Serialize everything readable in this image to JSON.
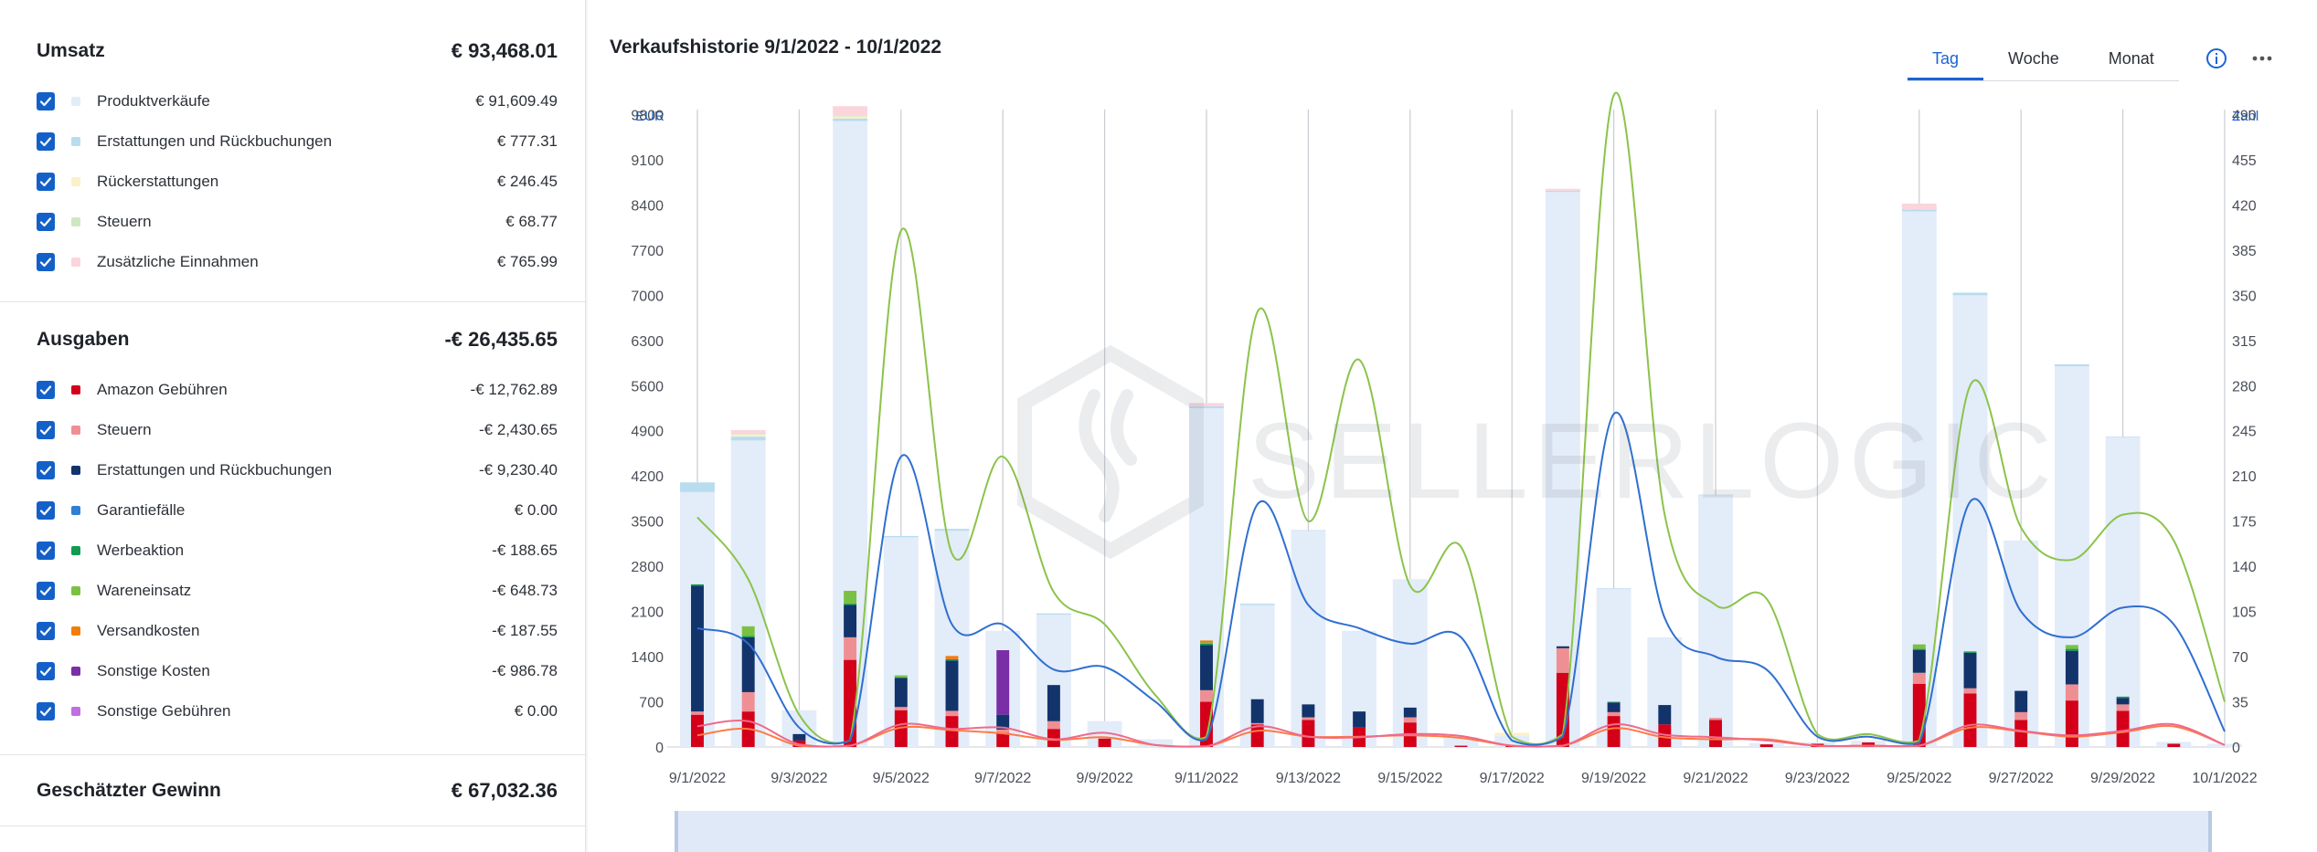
{
  "revenue": {
    "title": "Umsatz",
    "total": "€ 93,468.01",
    "items": [
      {
        "label": "Produktverkäufe",
        "value": "€ 91,609.49",
        "color": "#e3ecf9"
      },
      {
        "label": "Erstattungen und Rückbuchungen",
        "value": "€ 777.31",
        "color": "#b9dcef"
      },
      {
        "label": "Rückerstattungen",
        "value": "€ 246.45",
        "color": "#fbf0c8"
      },
      {
        "label": "Steuern",
        "value": "€ 68.77",
        "color": "#cfe8c2"
      },
      {
        "label": "Zusätzliche Einnahmen",
        "value": "€ 765.99",
        "color": "#fbd5dc"
      }
    ]
  },
  "expenses": {
    "title": "Ausgaben",
    "total": "-€ 26,435.65",
    "items": [
      {
        "label": "Amazon Gebühren",
        "value": "-€ 12,762.89",
        "color": "#d40019"
      },
      {
        "label": "Steuern",
        "value": "-€ 2,430.65",
        "color": "#ef8f94"
      },
      {
        "label": "Erstattungen und Rückbuchungen",
        "value": "-€ 9,230.40",
        "color": "#13336b"
      },
      {
        "label": "Garantiefälle",
        "value": "€ 0.00",
        "color": "#2f80d4"
      },
      {
        "label": "Werbeaktion",
        "value": "-€ 188.65",
        "color": "#109b4f"
      },
      {
        "label": "Wareneinsatz",
        "value": "-€ 648.73",
        "color": "#7ac143"
      },
      {
        "label": "Versandkosten",
        "value": "-€ 187.55",
        "color": "#f07d0b"
      },
      {
        "label": "Sonstige Kosten",
        "value": "-€ 986.78",
        "color": "#7a2fa6"
      },
      {
        "label": "Sonstige Gebühren",
        "value": "€ 0.00",
        "color": "#c06ee0"
      }
    ]
  },
  "profit": {
    "title": "Geschätzter Gewinn",
    "total": "€ 67,032.36"
  },
  "chart_header": {
    "title": "Verkaufshistorie 9/1/2022 - 10/1/2022",
    "tabs": [
      "Tag",
      "Woche",
      "Monat"
    ],
    "active_tab": "Tag",
    "watermark": "SELLERLOGIC"
  },
  "chart_data": {
    "type": "bar",
    "left_axis_unit": "EUR",
    "right_axis_unit": "Zahl",
    "ylim": [
      0,
      10500
    ],
    "y2lim": [
      0,
      525
    ],
    "yticks": [
      0,
      700,
      1400,
      2100,
      2800,
      3500,
      4200,
      4900,
      5600,
      6300,
      7000,
      7700,
      8400,
      9100,
      9800
    ],
    "y2ticks": [
      0,
      35,
      70,
      105,
      140,
      175,
      210,
      245,
      280,
      315,
      350,
      385,
      420,
      455,
      490
    ],
    "grid": "vertical",
    "dates": [
      "9/1/2022",
      "9/2/2022",
      "9/3/2022",
      "9/4/2022",
      "9/5/2022",
      "9/6/2022",
      "9/7/2022",
      "9/8/2022",
      "9/9/2022",
      "9/10/2022",
      "9/11/2022",
      "9/12/2022",
      "9/13/2022",
      "9/14/2022",
      "9/15/2022",
      "9/16/2022",
      "9/17/2022",
      "9/18/2022",
      "9/19/2022",
      "9/20/2022",
      "9/21/2022",
      "9/22/2022",
      "9/23/2022",
      "9/24/2022",
      "9/25/2022",
      "9/26/2022",
      "9/27/2022",
      "9/28/2022",
      "9/29/2022",
      "9/30/2022",
      "10/1/2022"
    ],
    "xtick_labels": [
      "9/1/2022",
      "9/3/2022",
      "9/5/2022",
      "9/7/2022",
      "9/9/2022",
      "9/11/2022",
      "9/13/2022",
      "9/15/2022",
      "9/17/2022",
      "9/19/2022",
      "9/21/2022",
      "9/23/2022",
      "9/25/2022",
      "9/27/2022",
      "9/29/2022",
      "10/1/2022"
    ],
    "revenue_stacks": [
      {
        "name": "Produktverkäufe",
        "color": "#e3ecf9",
        "values": [
          3950,
          4750,
          570,
          9700,
          3250,
          3350,
          1800,
          2050,
          400,
          120,
          5250,
          2200,
          3350,
          1800,
          2600,
          150,
          180,
          8600,
          2450,
          1700,
          3900,
          60,
          70,
          100,
          8300,
          7000,
          3200,
          5900,
          4800,
          80,
          50
        ]
      },
      {
        "name": "Erstattungen und Rückbuchungen",
        "color": "#b9dcef",
        "values": [
          150,
          60,
          0,
          40,
          20,
          30,
          0,
          20,
          0,
          0,
          30,
          20,
          10,
          0,
          0,
          0,
          0,
          20,
          10,
          0,
          10,
          0,
          0,
          0,
          30,
          40,
          0,
          30,
          10,
          0,
          0
        ]
      },
      {
        "name": "Rückerstattungen",
        "color": "#fbf0c8",
        "values": [
          0,
          30,
          0,
          30,
          0,
          0,
          0,
          0,
          0,
          0,
          0,
          0,
          0,
          0,
          0,
          0,
          40,
          0,
          0,
          0,
          0,
          0,
          0,
          0,
          0,
          0,
          0,
          0,
          0,
          0,
          0
        ]
      },
      {
        "name": "Steuern",
        "color": "#cfe8c2",
        "values": [
          0,
          10,
          0,
          10,
          0,
          0,
          0,
          0,
          0,
          0,
          0,
          0,
          0,
          0,
          0,
          0,
          0,
          0,
          0,
          0,
          0,
          0,
          0,
          0,
          0,
          0,
          0,
          0,
          0,
          0,
          0
        ]
      },
      {
        "name": "Zusätzliche Einnahmen",
        "color": "#fbd5dc",
        "values": [
          0,
          60,
          0,
          150,
          0,
          0,
          0,
          0,
          0,
          0,
          50,
          0,
          0,
          0,
          0,
          0,
          0,
          30,
          0,
          0,
          0,
          0,
          0,
          0,
          90,
          0,
          0,
          0,
          0,
          0,
          0
        ]
      }
    ],
    "expense_stacks": [
      {
        "name": "Amazon Gebühren",
        "color": "#d40019",
        "values": [
          500,
          550,
          100,
          1350,
          570,
          480,
          220,
          280,
          130,
          0,
          700,
          350,
          420,
          300,
          380,
          20,
          20,
          1150,
          480,
          350,
          420,
          40,
          50,
          70,
          980,
          830,
          420,
          720,
          560,
          50,
          0
        ]
      },
      {
        "name": "Steuern",
        "color": "#ef8f94",
        "values": [
          50,
          300,
          0,
          350,
          50,
          80,
          50,
          120,
          0,
          0,
          180,
          20,
          40,
          0,
          80,
          0,
          0,
          380,
          60,
          0,
          30,
          0,
          0,
          0,
          170,
          80,
          120,
          250,
          100,
          0,
          0
        ]
      },
      {
        "name": "Erstattungen und Rückbuchungen",
        "color": "#13336b",
        "values": [
          1950,
          850,
          100,
          500,
          450,
          780,
          230,
          560,
          0,
          0,
          700,
          370,
          200,
          250,
          150,
          0,
          0,
          30,
          150,
          300,
          0,
          0,
          0,
          0,
          350,
          550,
          330,
          520,
          100,
          0,
          0
        ]
      },
      {
        "name": "Werbeaktion",
        "color": "#109b4f",
        "values": [
          20,
          20,
          0,
          20,
          10,
          20,
          0,
          0,
          0,
          0,
          20,
          0,
          0,
          0,
          0,
          0,
          0,
          0,
          10,
          0,
          0,
          0,
          0,
          0,
          20,
          20,
          0,
          30,
          20,
          0,
          0
        ]
      },
      {
        "name": "Wareneinsatz",
        "color": "#7ac143",
        "values": [
          0,
          150,
          0,
          200,
          30,
          0,
          0,
          0,
          0,
          0,
          20,
          0,
          0,
          0,
          0,
          0,
          0,
          0,
          0,
          0,
          0,
          0,
          0,
          0,
          70,
          0,
          0,
          60,
          0,
          0,
          0
        ]
      },
      {
        "name": "Versandkosten",
        "color": "#f07d0b",
        "values": [
          0,
          0,
          0,
          0,
          0,
          50,
          0,
          0,
          0,
          0,
          30,
          0,
          0,
          0,
          0,
          0,
          0,
          0,
          0,
          0,
          0,
          0,
          0,
          0,
          0,
          0,
          0,
          0,
          0,
          0,
          0
        ]
      },
      {
        "name": "Sonstige Kosten",
        "color": "#7a2fa6",
        "values": [
          0,
          0,
          0,
          0,
          0,
          0,
          1000,
          0,
          0,
          0,
          0,
          0,
          0,
          0,
          0,
          0,
          0,
          0,
          0,
          0,
          0,
          0,
          0,
          0,
          0,
          0,
          0,
          0,
          0,
          0,
          0
        ]
      }
    ],
    "lines": [
      {
        "color": "#8bc34a",
        "axis": "right",
        "values": [
          178,
          130,
          25,
          5,
          400,
          150,
          225,
          120,
          95,
          40,
          8,
          337,
          175,
          300,
          125,
          155,
          8,
          10,
          505,
          180,
          110,
          115,
          10,
          10,
          5,
          280,
          170,
          145,
          180,
          160,
          35
        ]
      },
      {
        "color": "#2f6fd0",
        "axis": "right",
        "values": [
          92,
          80,
          15,
          5,
          225,
          95,
          95,
          60,
          62,
          35,
          6,
          188,
          110,
          92,
          80,
          85,
          5,
          8,
          258,
          100,
          70,
          60,
          8,
          8,
          3,
          190,
          105,
          85,
          108,
          95,
          12
        ]
      },
      {
        "color": "#ff7a45",
        "axis": "left",
        "values": [
          180,
          280,
          20,
          20,
          300,
          260,
          210,
          110,
          150,
          30,
          10,
          250,
          160,
          160,
          180,
          140,
          20,
          20,
          290,
          150,
          120,
          120,
          20,
          20,
          20,
          300,
          240,
          160,
          230,
          320,
          30
        ]
      },
      {
        "color": "#ef6a8a",
        "axis": "left",
        "values": [
          320,
          400,
          40,
          20,
          350,
          280,
          300,
          120,
          220,
          30,
          10,
          320,
          160,
          150,
          200,
          170,
          20,
          20,
          350,
          190,
          150,
          100,
          20,
          20,
          20,
          340,
          250,
          180,
          250,
          350,
          30
        ]
      }
    ]
  }
}
